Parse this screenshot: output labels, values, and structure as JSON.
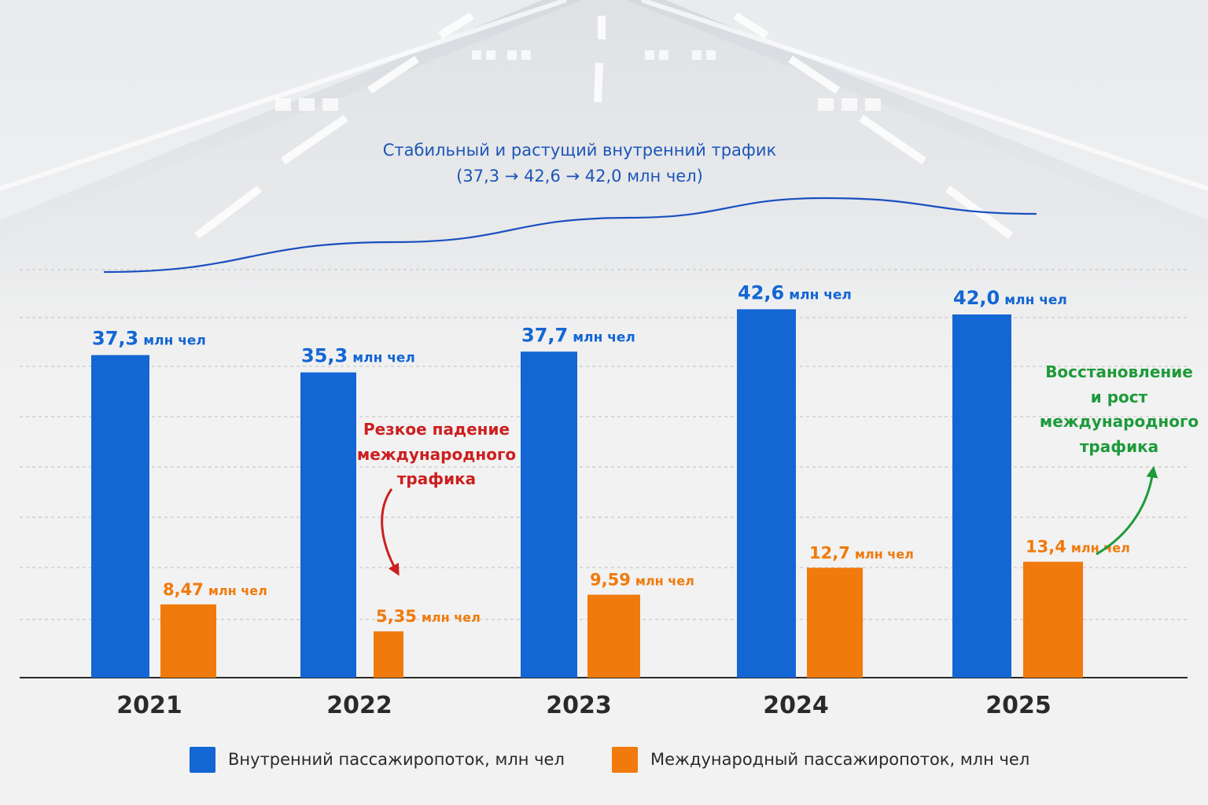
{
  "colors": {
    "domestic": "#1366d4",
    "international": "#f07a0c",
    "trend_line": "#1a4fbf",
    "annotation_drop": "#cc1f1f",
    "annotation_growth": "#1e9a3a",
    "axis_text": "#2a2a2a"
  },
  "annotations": {
    "trend_line1": "Стабильный и растущий внутренний трафик",
    "trend_line2": "(37,3 → 42,6 → 42,0 млн чел)",
    "drop": [
      "Резкое падение",
      "международного",
      "трафика"
    ],
    "growth": [
      "Восстановление",
      "и рост",
      "международного",
      "трафика"
    ]
  },
  "chart_data": {
    "type": "bar",
    "categories": [
      "2021",
      "2022",
      "2023",
      "2024",
      "2025"
    ],
    "series": [
      {
        "name": "Внутренний пассажиропоток, млн чел",
        "values": [
          37.3,
          35.3,
          37.7,
          42.6,
          42.0
        ],
        "labels": [
          "37,3",
          "35,3",
          "37,7",
          "42,6",
          "42,0"
        ]
      },
      {
        "name": "Международный пассажиропоток, млн чел",
        "values": [
          8.47,
          5.35,
          9.59,
          12.7,
          13.4
        ],
        "labels": [
          "8,47",
          "5,35",
          "9,59",
          "12,7",
          "13,4"
        ]
      }
    ],
    "unit_label": "млн чел",
    "ylim": [
      0,
      43
    ],
    "grid": true,
    "legend_position": "bottom"
  }
}
